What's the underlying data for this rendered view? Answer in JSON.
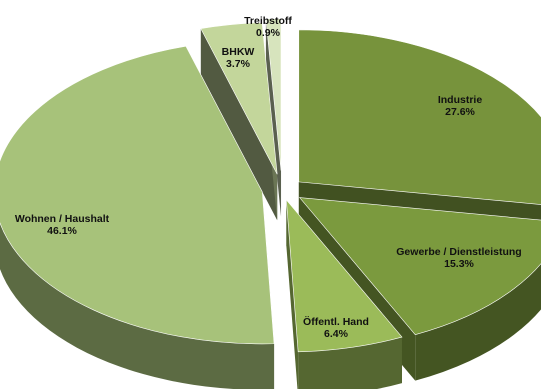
{
  "chart_data": {
    "type": "pie",
    "style": "3d-exploded",
    "slices": [
      {
        "label": "Industrie",
        "value": 27.6,
        "value_label": "27.6%",
        "color": "#77933c"
      },
      {
        "label": "Gewerbe / Dienstleistung",
        "value": 15.3,
        "value_label": "15.3%",
        "color": "#7b9a3e"
      },
      {
        "label": "Öffentl. Hand",
        "value": 6.4,
        "value_label": "6.4%",
        "color": "#9bbb59"
      },
      {
        "label": "Wohnen / Haushalt",
        "value": 46.1,
        "value_label": "46.1%",
        "color": "#a7c27a"
      },
      {
        "label": "BHKW",
        "value": 3.7,
        "value_label": "3.7%",
        "color": "#c3d69b"
      },
      {
        "label": "Treibstoff",
        "value": 0.9,
        "value_label": "0.9%",
        "color": "#d7e4bd"
      }
    ]
  }
}
